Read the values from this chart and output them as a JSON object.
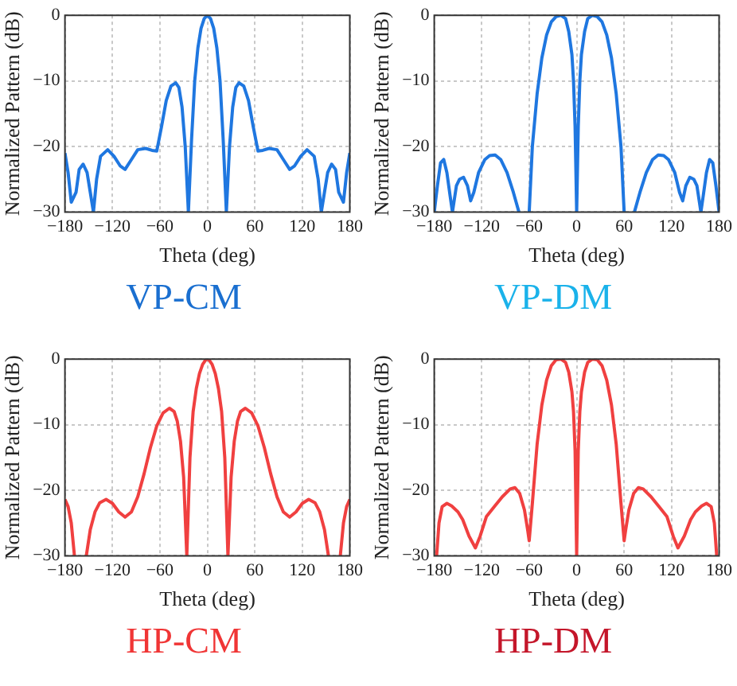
{
  "chart_data": [
    {
      "type": "line",
      "title": "VP-CM",
      "xlabel": "Theta (deg)",
      "ylabel": "Normalized Pattern (dB)",
      "xlim": [
        -180,
        180
      ],
      "xticks": [
        -180,
        -120,
        -60,
        0,
        60,
        120,
        180
      ],
      "ylim": [
        -30,
        0
      ],
      "yticks": [
        -30,
        -20,
        -10,
        0
      ],
      "grid": true,
      "marker": "none",
      "series": [
        {
          "color": "#1f77e0",
          "x": [
            -180,
            -176,
            -172,
            -166,
            -162,
            -157,
            -152,
            -148,
            -144,
            -140,
            -135,
            -126,
            -118,
            -110,
            -104,
            -96,
            -88,
            -78,
            -70,
            -64,
            -58,
            -52,
            -46,
            -40,
            -36,
            -32,
            -28,
            -24,
            -20,
            -16,
            -12,
            -8,
            -4,
            0,
            4,
            8,
            12,
            16,
            20,
            24,
            28,
            32,
            36,
            40,
            46,
            52,
            58,
            64,
            70,
            78,
            88,
            96,
            104,
            110,
            118,
            126,
            135,
            140,
            144,
            148,
            152,
            157,
            162,
            166,
            172,
            176,
            180
          ],
          "values": [
            -21,
            -24,
            -28.5,
            -27,
            -23.5,
            -22.7,
            -24,
            -27,
            -30,
            -25,
            -21.5,
            -20.5,
            -21.5,
            -23,
            -23.5,
            -22,
            -20.5,
            -20.3,
            -20.6,
            -20.7,
            -17,
            -13,
            -10.8,
            -10.3,
            -11,
            -14,
            -20,
            -30,
            -19,
            -10,
            -5,
            -2,
            -0.5,
            0,
            -0.5,
            -2,
            -5,
            -10,
            -19,
            -30,
            -20,
            -14,
            -11,
            -10.3,
            -10.8,
            -13,
            -17,
            -20.7,
            -20.6,
            -20.3,
            -20.5,
            -22,
            -23.5,
            -23,
            -21.5,
            -20.5,
            -21.5,
            -25,
            -30,
            -27,
            -24,
            -22.7,
            -23.5,
            -27,
            -28.5,
            -24,
            -21
          ]
        }
      ]
    },
    {
      "type": "line",
      "title": "VP-DM",
      "xlabel": "Theta (deg)",
      "ylabel": "Normalized Pattern (dB)",
      "xlim": [
        -180,
        180
      ],
      "xticks": [
        -180,
        -120,
        -60,
        0,
        60,
        120,
        180
      ],
      "ylim": [
        -30,
        0
      ],
      "yticks": [
        -30,
        -20,
        -10,
        0
      ],
      "grid": true,
      "marker": "none",
      "series": [
        {
          "color": "#1f77e0",
          "x": [
            -180,
            -176,
            -172,
            -168,
            -164,
            -160,
            -157,
            -152,
            -148,
            -143,
            -138,
            -134,
            -130,
            -124,
            -116,
            -110,
            -103,
            -96,
            -88,
            -80,
            -73,
            -66,
            -60,
            -56,
            -50,
            -44,
            -38,
            -32,
            -26,
            -20,
            -14,
            -10,
            -6,
            -4,
            -2,
            0,
            2,
            4,
            6,
            10,
            14,
            20,
            26,
            32,
            38,
            44,
            50,
            56,
            60,
            66,
            73,
            80,
            88,
            96,
            103,
            110,
            116,
            124,
            130,
            134,
            138,
            143,
            148,
            152,
            157,
            160,
            164,
            168,
            172,
            176,
            180
          ],
          "values": [
            -30,
            -26,
            -22.5,
            -22,
            -24,
            -27.5,
            -30,
            -26,
            -25,
            -24.7,
            -26,
            -28.3,
            -27,
            -24,
            -22,
            -21.4,
            -21.3,
            -22,
            -24,
            -27,
            -30,
            null,
            -30,
            -20,
            -12,
            -6.5,
            -3,
            -1,
            -0.2,
            0,
            -0.5,
            -2.5,
            -6,
            -10,
            -17,
            -30,
            -17,
            -10,
            -6,
            -2.5,
            -0.5,
            0,
            -0.2,
            -1,
            -3,
            -6.5,
            -12,
            -20,
            -30,
            null,
            -30,
            -27,
            -24,
            -22,
            -21.3,
            -21.4,
            -22,
            -24,
            -27,
            -28.3,
            -26,
            -24.7,
            -25,
            -26,
            -30,
            -27.5,
            -24,
            -22,
            -22.5,
            -26,
            -30
          ]
        }
      ]
    },
    {
      "type": "line",
      "title": "HP-CM",
      "xlabel": "Theta (deg)",
      "ylabel": "Normalized Pattern (dB)",
      "xlim": [
        -180,
        180
      ],
      "xticks": [
        -180,
        -120,
        -60,
        0,
        60,
        120,
        180
      ],
      "ylim": [
        -30,
        0
      ],
      "yticks": [
        -30,
        -20,
        -10,
        0
      ],
      "grid": true,
      "marker": "none",
      "series": [
        {
          "color": "#f04040",
          "x": [
            -180,
            -176,
            -172,
            -168,
            -166,
            -153,
            -148,
            -142,
            -136,
            -128,
            -120,
            -112,
            -104,
            -96,
            -88,
            -80,
            -72,
            -64,
            -56,
            -48,
            -42,
            -38,
            -34,
            -30,
            -26,
            -22,
            -18,
            -14,
            -10,
            -6,
            -2,
            0,
            2,
            6,
            10,
            14,
            18,
            22,
            26,
            30,
            34,
            38,
            42,
            48,
            56,
            64,
            72,
            80,
            88,
            96,
            104,
            112,
            120,
            128,
            136,
            142,
            148,
            153,
            166,
            168,
            172,
            176,
            180
          ],
          "values": [
            -21.4,
            -22.5,
            -25,
            -30,
            null,
            -30,
            -26,
            -23.3,
            -21.9,
            -21.4,
            -22,
            -23.3,
            -24.1,
            -23.3,
            -21,
            -17.5,
            -13.5,
            -10.2,
            -8.2,
            -7.5,
            -8,
            -9.5,
            -12.5,
            -18,
            -30,
            -15,
            -8,
            -4.5,
            -2.2,
            -0.8,
            -0.1,
            0,
            -0.1,
            -0.8,
            -2.2,
            -4.5,
            -8,
            -15,
            -30,
            -18,
            -12.5,
            -9.5,
            -8,
            -7.5,
            -8.2,
            -10.2,
            -13.5,
            -17.5,
            -21,
            -23.3,
            -24.1,
            -23.3,
            -22,
            -21.4,
            -21.9,
            -23.3,
            -26,
            -30,
            null,
            -30,
            -25,
            -22.5,
            -21.4
          ]
        }
      ]
    },
    {
      "type": "line",
      "title": "HP-DM",
      "xlabel": "Theta (deg)",
      "ylabel": "Normalized Pattern (dB)",
      "xlim": [
        -180,
        180
      ],
      "xticks": [
        -180,
        -120,
        -60,
        0,
        60,
        120,
        180
      ],
      "ylim": [
        -30,
        0
      ],
      "yticks": [
        -30,
        -20,
        -10,
        0
      ],
      "grid": true,
      "marker": "none",
      "series": [
        {
          "color": "#f04040",
          "x": [
            -177,
            -174,
            -170,
            -164,
            -158,
            -150,
            -144,
            -136,
            -128,
            -122,
            -114,
            -104,
            -94,
            -84,
            -78,
            -72,
            -66,
            -62,
            -60,
            -56,
            -50,
            -44,
            -38,
            -32,
            -26,
            -20,
            -14,
            -10,
            -6,
            -4,
            -2,
            0,
            2,
            4,
            6,
            10,
            14,
            20,
            26,
            32,
            38,
            44,
            50,
            56,
            60,
            62,
            66,
            72,
            78,
            84,
            94,
            104,
            114,
            122,
            128,
            136,
            144,
            150,
            158,
            164,
            170,
            174,
            177
          ],
          "values": [
            -30,
            -25,
            -22.5,
            -22,
            -22.4,
            -23.3,
            -24.5,
            -27,
            -28.8,
            -27,
            -24,
            -22.5,
            -21,
            -19.8,
            -19.6,
            -20.5,
            -23,
            -26,
            -27.7,
            -22,
            -13,
            -7,
            -3.2,
            -1,
            -0.1,
            0,
            -0.5,
            -2,
            -5,
            -8,
            -14,
            -30,
            -14,
            -8,
            -5,
            -2,
            -0.5,
            0,
            -0.1,
            -1,
            -3.2,
            -7,
            -13,
            -22,
            -27.7,
            -26,
            -23,
            -20.5,
            -19.6,
            -19.8,
            -21,
            -22.5,
            -24,
            -27,
            -28.8,
            -27,
            -24.5,
            -23.3,
            -22.4,
            -22,
            -22.5,
            -25,
            -30
          ]
        }
      ]
    }
  ]
}
